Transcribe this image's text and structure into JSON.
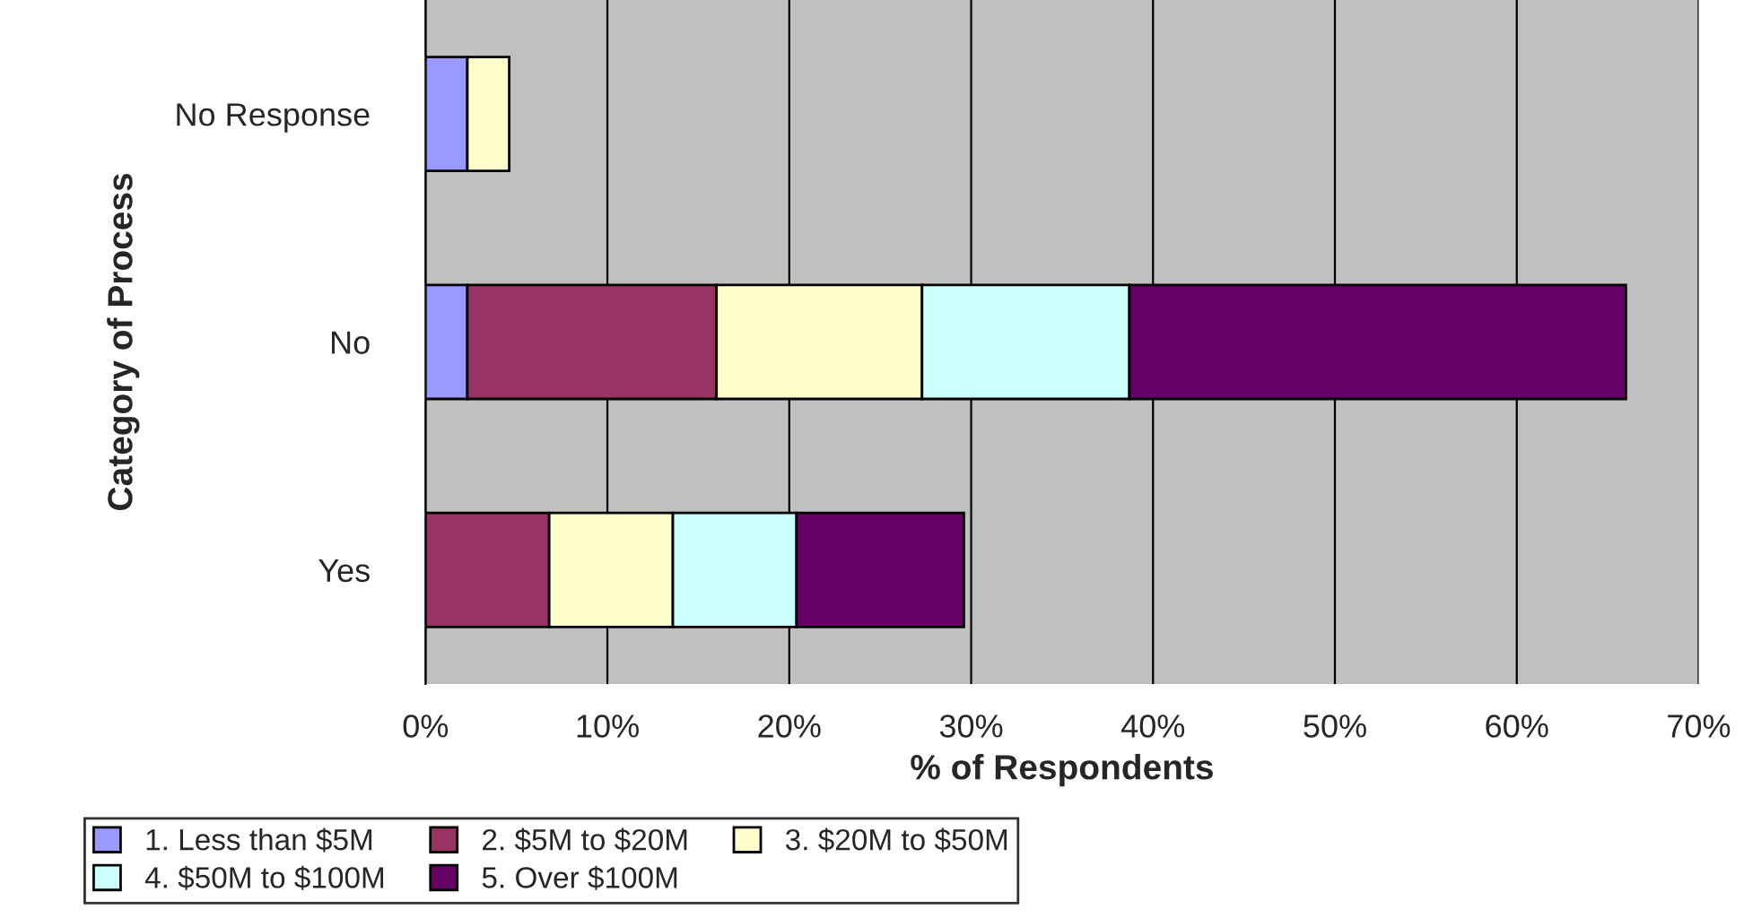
{
  "chart_data": {
    "type": "bar",
    "orientation": "horizontal",
    "stacked": true,
    "xlabel": "% of Respondents",
    "ylabel": "Category of Process",
    "categories": [
      "No Response",
      "No",
      "Yes"
    ],
    "series": [
      {
        "name": "1. Less than $5M",
        "color": "#9999ff",
        "values": [
          2.3,
          2.3,
          null
        ]
      },
      {
        "name": "2. $5M to $20M",
        "color": "#993366",
        "values": [
          null,
          13.7,
          6.8
        ]
      },
      {
        "name": "3. $20M to $50M",
        "color": "#ffffcc",
        "values": [
          2.3,
          11.3,
          6.8
        ]
      },
      {
        "name": "4. $50M to $100M",
        "color": "#ccffff",
        "values": [
          null,
          11.4,
          6.8
        ]
      },
      {
        "name": "5. Over $100M",
        "color": "#660066",
        "values": [
          null,
          27.3,
          9.2
        ]
      }
    ],
    "xlim": [
      0,
      70
    ],
    "xticks": [
      {
        "value": 0,
        "label": "0%"
      },
      {
        "value": 10,
        "label": "10%"
      },
      {
        "value": 20,
        "label": "20%"
      },
      {
        "value": 30,
        "label": "30%"
      },
      {
        "value": 40,
        "label": "40%"
      },
      {
        "value": 50,
        "label": "50%"
      },
      {
        "value": 60,
        "label": "60%"
      },
      {
        "value": 70,
        "label": "70%"
      }
    ],
    "grid": "x",
    "legend": "bottom"
  }
}
